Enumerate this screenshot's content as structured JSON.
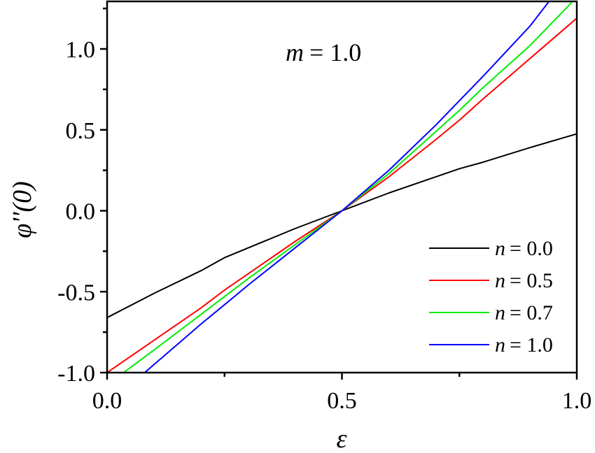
{
  "chart_data": {
    "type": "line",
    "title": "",
    "annotation": "m = 1.0",
    "annotation_var": "m",
    "annotation_value": "= 1.0",
    "xlabel": "ε",
    "ylabel": "φ''(0)",
    "xlim": [
      0.0,
      1.0
    ],
    "ylim": [
      -1.0,
      1.29
    ],
    "xticks": [
      0.0,
      0.5,
      1.0
    ],
    "xtick_labels": [
      "0.0",
      "0.5",
      "1.0"
    ],
    "yticks": [
      -1.0,
      -0.5,
      0.0,
      0.5,
      1.0
    ],
    "ytick_labels": [
      "-1.0",
      "-0.5",
      "0.0",
      "0.5",
      "1.0"
    ],
    "grid": false,
    "legend_position": "lower right",
    "series": [
      {
        "name": "n = 0.0",
        "var": "n",
        "value": "= 0.0",
        "color": "#000000",
        "x": [
          0.0,
          0.1,
          0.2,
          0.25,
          0.3,
          0.4,
          0.5,
          0.6,
          0.7,
          0.75,
          0.8,
          0.9,
          1.0
        ],
        "y": [
          -0.66,
          -0.51,
          -0.37,
          -0.29,
          -0.23,
          -0.11,
          0.0,
          0.11,
          0.21,
          0.26,
          0.3,
          0.39,
          0.475
        ]
      },
      {
        "name": "n = 0.5",
        "var": "n",
        "value": "= 0.5",
        "color": "#ff0000",
        "x": [
          0.0,
          0.1,
          0.2,
          0.25,
          0.3,
          0.4,
          0.5,
          0.6,
          0.7,
          0.75,
          0.8,
          0.9,
          1.0
        ],
        "y": [
          -1.0,
          -0.8,
          -0.6,
          -0.49,
          -0.39,
          -0.19,
          0.0,
          0.21,
          0.44,
          0.56,
          0.69,
          0.94,
          1.19
        ]
      },
      {
        "name": "n = 0.7",
        "var": "n",
        "value": "= 0.7",
        "color": "#00ee00",
        "x": [
          0.035,
          0.1,
          0.2,
          0.25,
          0.3,
          0.4,
          0.5,
          0.6,
          0.7,
          0.75,
          0.8,
          0.9,
          0.99
        ],
        "y": [
          -1.0,
          -0.86,
          -0.64,
          -0.53,
          -0.42,
          -0.21,
          0.0,
          0.23,
          0.49,
          0.62,
          0.76,
          1.02,
          1.29
        ]
      },
      {
        "name": "n = 1.0",
        "var": "n",
        "value": "= 1.0",
        "color": "#0000ff",
        "x": [
          0.08,
          0.1,
          0.2,
          0.25,
          0.3,
          0.4,
          0.5,
          0.6,
          0.7,
          0.75,
          0.8,
          0.9,
          0.94
        ],
        "y": [
          -1.0,
          -0.95,
          -0.7,
          -0.58,
          -0.46,
          -0.23,
          0.0,
          0.25,
          0.53,
          0.68,
          0.83,
          1.14,
          1.29
        ]
      }
    ]
  }
}
